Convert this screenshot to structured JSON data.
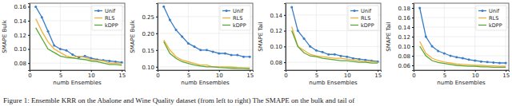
{
  "chart_data": [
    {
      "type": "line",
      "x_label": "numb Ensembles",
      "y_label": "SMAPE Bulk",
      "grid": true,
      "legend": "upper right",
      "x": [
        1,
        2,
        3,
        4,
        5,
        6,
        7,
        8,
        9,
        10,
        11,
        12,
        13,
        14,
        15
      ],
      "xlim": [
        0,
        15.5
      ],
      "xticks": [
        0,
        5,
        10,
        15
      ],
      "ylim": [
        0.07,
        0.165
      ],
      "yticks": [
        {
          "value": 0.08,
          "label": "0.08"
        },
        {
          "value": 0.1,
          "label": "0.10"
        },
        {
          "value": 0.12,
          "label": "0.12"
        },
        {
          "value": 0.14,
          "label": "0.14"
        },
        {
          "value": 0.16,
          "label": "0.16"
        }
      ],
      "series": [
        {
          "name": "Unif",
          "color": "#3a7dc9",
          "marker": "circle",
          "values": [
            0.16,
            0.145,
            0.125,
            0.105,
            0.1,
            0.098,
            0.092,
            0.088,
            0.09,
            0.087,
            0.085,
            0.084,
            0.083,
            0.082,
            0.081
          ]
        },
        {
          "name": "RLS",
          "color": "#f2b13a",
          "values": [
            0.143,
            0.125,
            0.11,
            0.1,
            0.095,
            0.09,
            0.088,
            0.09,
            0.088,
            0.085,
            0.084,
            0.083,
            0.08,
            0.08,
            0.079
          ]
        },
        {
          "name": "kDPP",
          "color": "#5aa832",
          "values": [
            0.13,
            0.115,
            0.1,
            0.095,
            0.09,
            0.088,
            0.087,
            0.086,
            0.085,
            0.083,
            0.082,
            0.08,
            0.078,
            0.078,
            0.077
          ]
        }
      ]
    },
    {
      "type": "line",
      "x_label": "numb Ensembles",
      "y_label": "SMAPE Bulk",
      "grid": true,
      "legend": "upper right",
      "x": [
        1,
        2,
        3,
        4,
        5,
        6,
        7,
        8,
        9,
        10,
        11,
        12,
        13,
        14,
        15
      ],
      "xlim": [
        0,
        15.5
      ],
      "xticks": [
        0,
        5,
        10,
        15
      ],
      "ylim": [
        0.09,
        0.29
      ],
      "yticks": [
        {
          "value": 0.1,
          "label": "0.10"
        },
        {
          "value": 0.15,
          "label": "0.15"
        },
        {
          "value": 0.2,
          "label": "0.20"
        },
        {
          "value": 0.25,
          "label": "0.25"
        }
      ],
      "series": [
        {
          "name": "Unif",
          "color": "#3a7dc9",
          "marker": "circle",
          "values": [
            0.28,
            0.24,
            0.21,
            0.19,
            0.17,
            0.16,
            0.15,
            0.15,
            0.145,
            0.14,
            0.14,
            0.135,
            0.135,
            0.13,
            0.13
          ]
        },
        {
          "name": "RLS",
          "color": "#f2b13a",
          "values": [
            0.18,
            0.15,
            0.13,
            0.12,
            0.115,
            0.11,
            0.105,
            0.105,
            0.1,
            0.1,
            0.1,
            0.1,
            0.098,
            0.097,
            0.097
          ]
        },
        {
          "name": "kDPP",
          "color": "#5aa832",
          "values": [
            0.175,
            0.14,
            0.125,
            0.115,
            0.11,
            0.105,
            0.102,
            0.1,
            0.1,
            0.098,
            0.097,
            0.096,
            0.095,
            0.095,
            0.094
          ]
        }
      ]
    },
    {
      "type": "line",
      "x_label": "numb Ensembles",
      "y_label": "SMAPE Tail",
      "grid": true,
      "legend": "upper right",
      "x": [
        1,
        2,
        3,
        4,
        5,
        6,
        7,
        8,
        9,
        10,
        11,
        12,
        13,
        14,
        15
      ],
      "xlim": [
        0,
        15.5
      ],
      "xticks": [
        0,
        5,
        10,
        15
      ],
      "ylim": [
        0.07,
        0.155
      ],
      "yticks": [
        {
          "value": 0.08,
          "label": "0.08"
        },
        {
          "value": 0.1,
          "label": "0.10"
        },
        {
          "value": 0.12,
          "label": "0.12"
        },
        {
          "value": 0.14,
          "label": "0.14"
        }
      ],
      "series": [
        {
          "name": "Unif",
          "color": "#3a7dc9",
          "marker": "circle",
          "values": [
            0.15,
            0.12,
            0.11,
            0.1,
            0.095,
            0.093,
            0.09,
            0.09,
            0.088,
            0.087,
            0.085,
            0.084,
            0.083,
            0.082,
            0.081
          ]
        },
        {
          "name": "RLS",
          "color": "#f2b13a",
          "values": [
            0.125,
            0.1,
            0.095,
            0.09,
            0.088,
            0.087,
            0.086,
            0.085,
            0.085,
            0.084,
            0.083,
            0.082,
            0.081,
            0.081,
            0.08
          ]
        },
        {
          "name": "kDPP",
          "color": "#5aa832",
          "values": [
            0.12,
            0.1,
            0.092,
            0.088,
            0.087,
            0.085,
            0.084,
            0.083,
            0.082,
            0.082,
            0.081,
            0.08,
            0.08,
            0.079,
            0.079
          ]
        }
      ]
    },
    {
      "type": "line",
      "x_label": "numb Ensembles",
      "y_label": "SMAPE Tail",
      "grid": true,
      "legend": "upper right",
      "x": [
        1,
        2,
        3,
        4,
        5,
        6,
        7,
        8,
        9,
        10,
        11,
        12,
        13,
        14,
        15
      ],
      "xlim": [
        0,
        15.5
      ],
      "xticks": [
        0,
        5,
        10,
        15
      ],
      "ylim": [
        0.05,
        0.19
      ],
      "yticks": [
        {
          "value": 0.06,
          "label": "0.06"
        },
        {
          "value": 0.08,
          "label": "0.08"
        },
        {
          "value": 0.1,
          "label": "0.10"
        },
        {
          "value": 0.12,
          "label": "0.12"
        },
        {
          "value": 0.14,
          "label": "0.14"
        },
        {
          "value": 0.16,
          "label": "0.16"
        },
        {
          "value": 0.18,
          "label": "0.18"
        }
      ],
      "series": [
        {
          "name": "Unif",
          "color": "#3a7dc9",
          "marker": "circle",
          "values": [
            0.18,
            0.12,
            0.1,
            0.09,
            0.085,
            0.08,
            0.077,
            0.075,
            0.072,
            0.07,
            0.068,
            0.067,
            0.066,
            0.065,
            0.065
          ]
        },
        {
          "name": "RLS",
          "color": "#f2b13a",
          "values": [
            0.11,
            0.085,
            0.075,
            0.07,
            0.067,
            0.065,
            0.063,
            0.062,
            0.061,
            0.06,
            0.06,
            0.059,
            0.059,
            0.058,
            0.058
          ]
        },
        {
          "name": "kDPP",
          "color": "#5aa832",
          "values": [
            0.1,
            0.08,
            0.07,
            0.066,
            0.064,
            0.062,
            0.06,
            0.059,
            0.058,
            0.058,
            0.057,
            0.057,
            0.056,
            0.056,
            0.056
          ]
        }
      ]
    }
  ],
  "caption": "Figure 1: Ensemble KRR on the Abalone and Wine Quality dataset (from left to right) The SMAPE on the bulk and tail of"
}
